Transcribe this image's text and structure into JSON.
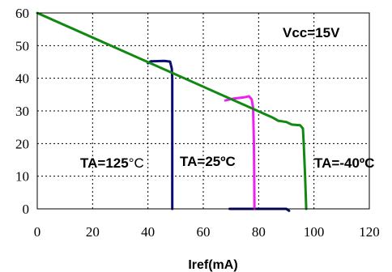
{
  "chart_data": {
    "type": "line",
    "title": "",
    "xlabel": "Iref(mA)",
    "ylabel": "",
    "xlim": [
      0,
      120
    ],
    "ylim": [
      0,
      60
    ],
    "x_ticks": [
      "0",
      "20",
      "40",
      "60",
      "80",
      "100",
      "120"
    ],
    "y_ticks": [
      "0",
      "10",
      "20",
      "30",
      "40",
      "50",
      "60"
    ],
    "grid": true,
    "legend": "none",
    "annotations": {
      "vcc": "Vcc=15V",
      "ta125_prefix": "TA=125",
      "ta125_unit": "°C",
      "ta25": "TA=25ºC",
      "ta40": "TA=-40ºC"
    },
    "series": [
      {
        "color": "#0a0a78",
        "points": [
          [
            40,
            44.6
          ],
          [
            41,
            45.2
          ],
          [
            46,
            45.3
          ],
          [
            48,
            45.1
          ],
          [
            48.6,
            43
          ],
          [
            48.8,
            40
          ],
          [
            48.8,
            0
          ]
        ]
      },
      {
        "color": "#0a0a78",
        "points": [
          [
            69.5,
            0
          ],
          [
            90,
            0
          ],
          [
            91,
            -0.6
          ]
        ]
      },
      {
        "color": "#ee22ee",
        "points": [
          [
            68,
            33.2
          ],
          [
            71,
            33.8
          ],
          [
            75,
            34.2
          ],
          [
            76.5,
            34.5
          ],
          [
            77.5,
            33.5
          ],
          [
            78,
            31
          ],
          [
            78.3,
            20
          ],
          [
            78.5,
            0
          ]
        ]
      },
      {
        "color": "#118811",
        "points": [
          [
            0,
            60
          ],
          [
            85,
            28
          ],
          [
            87,
            27
          ],
          [
            90,
            26.6
          ],
          [
            92,
            25.8
          ],
          [
            95,
            25.6
          ],
          [
            96,
            24.6
          ],
          [
            96.3,
            20
          ],
          [
            96.8,
            10
          ],
          [
            97.2,
            0
          ]
        ]
      }
    ]
  }
}
